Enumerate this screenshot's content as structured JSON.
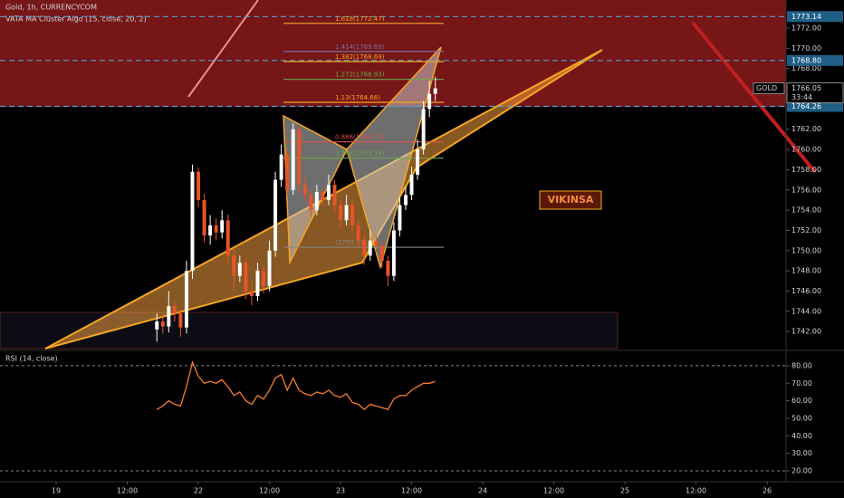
{
  "chart_data": [
    {
      "type": "candlestick",
      "title": "Gold, 1h, CURRENCYCOM",
      "indicator": "VATA MA Cluster Algo (15, close, 20, 2)",
      "annotation": "VIKINSA",
      "symbol": "GOLD",
      "countdown": "33:44",
      "current_price": 1766.05,
      "up_color": "#ffffff",
      "down_color": "#e8542a",
      "xlim": [
        2.52,
        135.2
      ],
      "ylim": [
        1740.31,
        1774.78
      ],
      "yticks": [
        1742,
        1744,
        1746,
        1748,
        1750,
        1752,
        1754,
        1756,
        1758,
        1760,
        1762,
        1764,
        1766,
        1768,
        1770,
        1772
      ],
      "yticks_labels": [
        "1742.00",
        "1744.00",
        "1746.00",
        "1748.00",
        "1750.00",
        "1752.00",
        "1754.00",
        "1756.00",
        "1758.00",
        "1760.00",
        "1762.00",
        "1764.00",
        "1766.00",
        "1768.00",
        "1770.00",
        "1772.00"
      ],
      "price_lines": [
        1773.14,
        {
          "value": 1768.8,
          "label": "1768.80"
        },
        1764.26
      ],
      "fib_levels": [
        {
          "label": "1.618(1772.47)",
          "value": 1772.47,
          "color": "#f5a623"
        },
        {
          "label": "1.414(1769.69)",
          "value": 1769.69,
          "color": "#7a6fa8"
        },
        {
          "label": "1.382(1768.69)",
          "value": 1768.69,
          "color": "#f5a623"
        },
        {
          "label": "1.272(1766.93)",
          "value": 1766.93,
          "color": "#6aa84f"
        },
        {
          "label": "1.13(1764.66)",
          "value": 1764.66,
          "color": "#f5a623"
        },
        {
          "label": "0.886(1760.75)",
          "value": 1760.75,
          "color": "#e05050"
        },
        {
          "label": "0.786(1759.14)",
          "value": 1759.14,
          "color": "#6aa84f"
        },
        {
          "label": "(1750.33)",
          "value": 1750.33,
          "color": "#888888"
        }
      ],
      "x": [
        29,
        30,
        31,
        32,
        33,
        34,
        35,
        36,
        37,
        38,
        39,
        40,
        41,
        42,
        43,
        44,
        45,
        46,
        47,
        48,
        49,
        50,
        51,
        52,
        53,
        54,
        55,
        56,
        57,
        58,
        59,
        60,
        61,
        62,
        63,
        64,
        65,
        66,
        67,
        68,
        69,
        70,
        71,
        72,
        73,
        74,
        75,
        76
      ],
      "open": [
        1742.2,
        1743.0,
        1742.5,
        1744.5,
        1743.8,
        1742.4,
        1748.0,
        1757.8,
        1755.0,
        1751.5,
        1752.5,
        1751.8,
        1753.0,
        1749.5,
        1747.5,
        1748.8,
        1746.0,
        1745.5,
        1748.0,
        1746.5,
        1750.0,
        1757.0,
        1759.5,
        1756.0,
        1762.0,
        1756.5,
        1755.5,
        1754.0,
        1755.8,
        1755.0,
        1756.5,
        1754.5,
        1753.0,
        1754.5,
        1752.5,
        1751.0,
        1749.5,
        1751.0,
        1750.5,
        1749.0,
        1747.5,
        1752.0,
        1754.5,
        1755.5,
        1757.5,
        1760.0,
        1764.0,
        1765.5
      ],
      "high": [
        1743.8,
        1743.6,
        1746.0,
        1745.0,
        1744.2,
        1749.0,
        1758.5,
        1758.2,
        1755.6,
        1753.5,
        1753.2,
        1754.0,
        1753.6,
        1750.2,
        1749.5,
        1749.2,
        1747.0,
        1748.8,
        1748.5,
        1751.0,
        1757.8,
        1760.5,
        1760.0,
        1762.6,
        1762.3,
        1757.2,
        1756.0,
        1756.5,
        1756.2,
        1757.5,
        1757.0,
        1755.0,
        1755.5,
        1755.0,
        1753.0,
        1751.6,
        1752.0,
        1751.5,
        1751.0,
        1749.5,
        1752.8,
        1755.3,
        1756.4,
        1758.3,
        1761.0,
        1764.8,
        1766.8,
        1767.2
      ],
      "low": [
        1741.0,
        1741.8,
        1741.9,
        1743.0,
        1741.5,
        1741.8,
        1747.2,
        1754.3,
        1750.8,
        1750.6,
        1751.0,
        1751.2,
        1748.8,
        1746.0,
        1746.9,
        1745.2,
        1744.6,
        1745.0,
        1745.8,
        1746.0,
        1749.4,
        1756.3,
        1755.4,
        1755.5,
        1755.8,
        1754.9,
        1753.3,
        1753.5,
        1754.4,
        1754.5,
        1753.8,
        1752.2,
        1752.5,
        1751.8,
        1750.3,
        1748.6,
        1749.0,
        1749.8,
        1748.3,
        1746.5,
        1747.0,
        1751.4,
        1754.0,
        1755.0,
        1757.0,
        1759.5,
        1763.2,
        1764.8
      ],
      "close": [
        1743.0,
        1742.5,
        1744.5,
        1743.8,
        1742.4,
        1748.0,
        1757.8,
        1755.0,
        1751.5,
        1752.5,
        1751.8,
        1753.0,
        1749.5,
        1747.5,
        1748.8,
        1746.0,
        1745.5,
        1748.0,
        1746.5,
        1750.0,
        1757.0,
        1759.5,
        1756.0,
        1762.0,
        1756.5,
        1755.5,
        1754.0,
        1755.8,
        1755.0,
        1756.5,
        1754.5,
        1753.0,
        1754.5,
        1752.5,
        1751.0,
        1749.5,
        1751.0,
        1750.5,
        1749.0,
        1747.5,
        1752.0,
        1754.5,
        1755.5,
        1757.5,
        1760.0,
        1764.0,
        1765.5,
        1766.05
      ]
    },
    {
      "type": "line",
      "title": "RSI (14, close)",
      "xlim": [
        2.52,
        135.2
      ],
      "ylim": [
        14.8,
        87.2
      ],
      "yticks": [
        {
          "value": 80,
          "label": "80.00"
        },
        {
          "value": 70,
          "label": "70.00"
        },
        {
          "value": 60,
          "label": "60.00"
        },
        {
          "value": 50,
          "label": "50.00"
        },
        {
          "value": 40,
          "label": "40.00"
        },
        {
          "value": 30,
          "label": "30.00"
        },
        {
          "value": 20,
          "label": "20.00"
        }
      ],
      "xticks": [
        {
          "value": 12,
          "label": "19"
        },
        {
          "value": 24,
          "label": "12:00"
        },
        {
          "value": 36,
          "label": "22"
        },
        {
          "value": 48,
          "label": "12:00"
        },
        {
          "value": 60,
          "label": "23"
        },
        {
          "value": 72,
          "label": "12:00"
        },
        {
          "value": 84,
          "label": "24"
        },
        {
          "value": 96,
          "label": "12:00"
        },
        {
          "value": 108,
          "label": "25"
        },
        {
          "value": 120,
          "label": "12:00"
        },
        {
          "value": 132,
          "label": "26"
        }
      ],
      "x": [
        29,
        30,
        31,
        32,
        33,
        34,
        35,
        36,
        37,
        38,
        39,
        40,
        41,
        42,
        43,
        44,
        45,
        46,
        47,
        48,
        49,
        50,
        51,
        52,
        53,
        54,
        55,
        56,
        57,
        58,
        59,
        60,
        61,
        62,
        63,
        64,
        65,
        66,
        67,
        68,
        69,
        70,
        71,
        72,
        73,
        74,
        75,
        76
      ],
      "series": [
        {
          "color": "#f57c2e",
          "values": [
            55,
            57,
            60,
            58,
            57,
            68,
            82,
            74,
            70,
            71,
            70,
            72,
            68,
            63,
            65,
            60,
            58,
            63,
            61,
            66,
            73,
            75,
            66,
            73,
            66,
            64,
            63,
            65,
            64,
            66,
            63,
            62,
            64,
            59,
            58,
            55,
            58,
            57,
            56,
            55,
            61,
            63,
            63,
            66,
            68,
            70,
            70,
            71
          ]
        }
      ]
    }
  ]
}
